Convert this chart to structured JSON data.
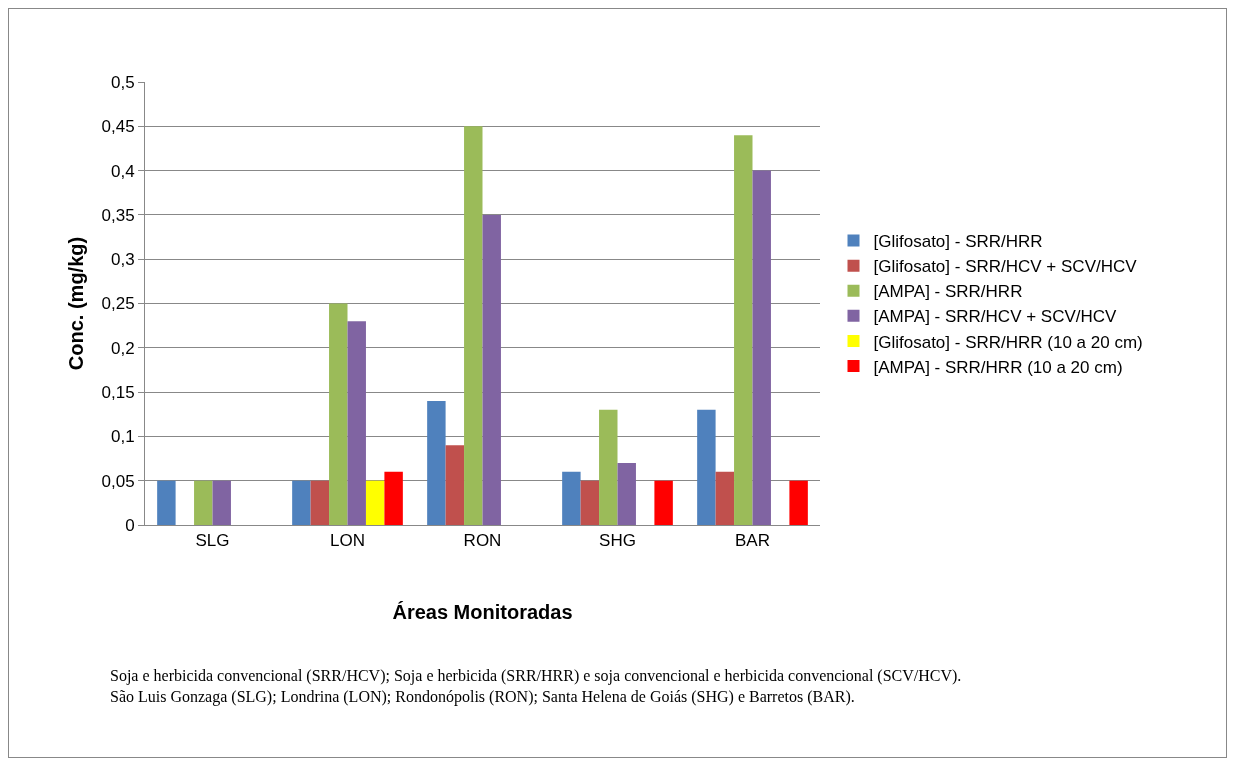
{
  "chart_data": {
    "type": "bar",
    "xlabel": "Áreas Monitoradas",
    "ylabel": "Conc. (mg/kg)",
    "categories": [
      "SLG",
      "LON",
      "RON",
      "SHG",
      "BAR"
    ],
    "series": [
      {
        "name": "[Glifosato] - SRR/HRR",
        "color": "#4f81bd",
        "values": [
          0.05,
          0.05,
          0.14,
          0.06,
          0.13
        ]
      },
      {
        "name": "[Glifosato] - SRR/HCV + SCV/HCV",
        "color": "#c0504d",
        "values": [
          null,
          0.05,
          0.09,
          0.05,
          0.06
        ]
      },
      {
        "name": "[AMPA] - SRR/HRR",
        "color": "#9bbb59",
        "values": [
          0.05,
          0.25,
          0.45,
          0.13,
          0.44
        ]
      },
      {
        "name": "[AMPA] - SRR/HCV + SCV/HCV",
        "color": "#8064a2",
        "values": [
          0.05,
          0.23,
          0.35,
          0.07,
          0.4
        ]
      },
      {
        "name": "[Glifosato] - SRR/HRR (10 a 20 cm)",
        "color": "#ffff00",
        "values": [
          null,
          0.05,
          null,
          null,
          null
        ]
      },
      {
        "name": "[AMPA] - SRR/HRR (10 a 20 cm)",
        "color": "#ff0000",
        "values": [
          null,
          0.06,
          null,
          0.05,
          0.05
        ]
      }
    ],
    "ylim": [
      0,
      0.5
    ],
    "yticks": [
      0,
      {
        "value": 0.05,
        "label": "0,05"
      },
      {
        "value": 0.1,
        "label": "0,1"
      },
      {
        "value": 0.15,
        "label": "0,15"
      },
      {
        "value": 0.2,
        "label": "0,2"
      },
      {
        "value": 0.25,
        "label": "0,25"
      },
      {
        "value": 0.3,
        "label": "0,3"
      },
      {
        "value": 0.35,
        "label": "0,35"
      },
      {
        "value": 0.4,
        "label": "0,4"
      },
      {
        "value": 0.45,
        "label": "0,45"
      },
      {
        "value": 0.5,
        "label": "0,5"
      }
    ],
    "grid": "y",
    "legend": "right",
    "annotations": [
      "Soja e herbicida convencional (SRR/HCV); Soja e herbicida (SRR/HRR) e soja convencional e herbicida convencional (SCV/HCV).",
      "São Luis Gonzaga (SLG); Londrina (LON); Rondonópolis (RON); Santa Helena de Goiás (SHG) e Barretos (BAR)."
    ]
  }
}
